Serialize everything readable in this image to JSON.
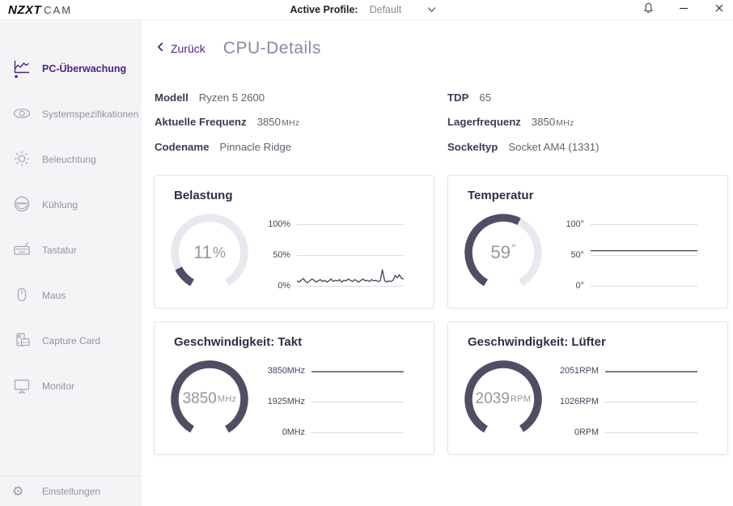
{
  "colors": {
    "accent": "#4e2583",
    "gauge_fill": "#504e64",
    "gauge_track": "#e8e9ee",
    "spark_line": "#4d4c60",
    "grid_line": "#dcdce2"
  },
  "titlebar": {
    "logo_primary": "NZXT",
    "logo_secondary": "CAM",
    "active_profile_label": "Active Profile:",
    "active_profile_value": "Default"
  },
  "sidebar": {
    "items": [
      {
        "label": "PC-Überwachung",
        "icon": "line-chart",
        "active": true
      },
      {
        "label": "Systemspezifikationen",
        "icon": "eye",
        "active": false
      },
      {
        "label": "Beleuchtung",
        "icon": "sun",
        "active": false
      },
      {
        "label": "Kühlung",
        "icon": "cooling",
        "active": false
      },
      {
        "label": "Tastatur",
        "icon": "keyboard",
        "active": false
      },
      {
        "label": "Maus",
        "icon": "mouse",
        "active": false
      },
      {
        "label": "Capture Card",
        "icon": "capture-card",
        "active": false
      },
      {
        "label": "Monitor",
        "icon": "monitor",
        "active": false
      }
    ],
    "footer": {
      "label": "Einstellungen",
      "icon": "gear"
    }
  },
  "header": {
    "back_label": "Zurück",
    "title": "CPU-Details"
  },
  "specs": {
    "left": [
      {
        "label": "Modell",
        "value": "Ryzen 5 2600"
      },
      {
        "label": "Aktuelle Frequenz",
        "value": "3850",
        "unit": "MHz"
      },
      {
        "label": "Codename",
        "value": "Pinnacle Ridge"
      }
    ],
    "right": [
      {
        "label": "TDP",
        "value": "65"
      },
      {
        "label": "Lagerfrequenz",
        "value": "3850",
        "unit": "MHz"
      },
      {
        "label": "Sockeltyp",
        "value": "Socket AM4 (1331)"
      }
    ]
  },
  "cards": [
    {
      "title": "Belastung",
      "gauge": {
        "value": "11",
        "unit": "%",
        "percent": 11
      },
      "axis": [
        "100%",
        "50%",
        "0%"
      ],
      "spark": {
        "ymin": 0,
        "ymax": 100,
        "values": [
          8,
          6,
          9,
          12,
          7,
          5,
          8,
          11,
          9,
          6,
          8,
          10,
          7,
          9,
          6,
          8,
          11,
          7,
          9,
          8,
          10,
          6,
          9,
          8,
          11,
          9,
          7,
          10,
          8,
          6,
          9,
          11,
          8,
          9,
          7,
          10,
          8,
          9,
          7,
          8,
          26,
          9,
          6,
          8,
          7,
          9,
          17,
          13,
          18,
          12,
          11
        ]
      }
    },
    {
      "title": "Temperatur",
      "gauge": {
        "value": "59",
        "unit": "°",
        "percent": 59
      },
      "axis": [
        "100°",
        "50°",
        "0°"
      ],
      "spark": {
        "ymin": 0,
        "ymax": 100,
        "values": [
          57,
          57,
          57,
          57,
          57,
          57,
          57,
          57,
          57,
          57,
          57,
          57,
          57,
          57,
          57,
          57,
          57,
          57,
          57,
          57,
          57,
          57,
          57,
          57,
          57,
          57
        ]
      }
    },
    {
      "title": "Geschwindigkeit: Takt",
      "gauge": {
        "value": "3850",
        "unit": "MHz",
        "percent": 100
      },
      "axis": [
        "3850MHz",
        "1925MHz",
        "0MHz"
      ],
      "spark": {
        "ymin": 0,
        "ymax": 3850,
        "values": [
          3850,
          3850,
          3850,
          3850,
          3850,
          3850,
          3850,
          3850,
          3850,
          3850,
          3850,
          3850,
          3850,
          3850,
          3850,
          3850,
          3850,
          3850,
          3850,
          3850,
          3850,
          3850,
          3850,
          3850,
          3850,
          3850
        ]
      }
    },
    {
      "title": "Geschwindigkeit: Lüfter",
      "gauge": {
        "value": "2039",
        "unit": "RPM",
        "percent": 99.4
      },
      "axis": [
        "2051RPM",
        "1026RPM",
        "0RPM"
      ],
      "spark": {
        "ymin": 0,
        "ymax": 2051,
        "values": [
          2040,
          2048,
          2022,
          2036,
          2050,
          2044,
          2026,
          2040,
          2050,
          2030,
          2045,
          2022,
          2040,
          2048,
          2034,
          2026,
          2045,
          2050,
          2030,
          2040,
          2022,
          2045,
          2034,
          2050,
          2040,
          2026,
          2048,
          2030,
          2045,
          2040
        ]
      }
    }
  ]
}
